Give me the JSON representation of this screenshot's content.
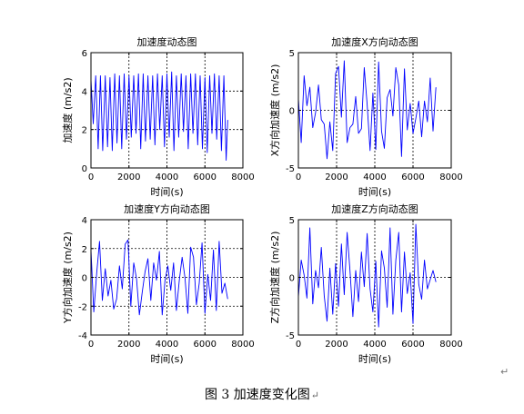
{
  "figure_caption": "图 3  加速度变化图",
  "caption_mark": "↵",
  "trailing_mark": "↵",
  "chart_data": [
    {
      "type": "line",
      "title": "加速度动态图",
      "xlabel": "时间(s)",
      "ylabel": "加速度 (m/s2)",
      "xlim": [
        0,
        8000
      ],
      "ylim": [
        0,
        6
      ],
      "xticks": [
        0,
        2000,
        4000,
        6000,
        8000
      ],
      "yticks": [
        0,
        2,
        4,
        6
      ],
      "grid_x": [
        2000,
        4000,
        6000
      ],
      "grid_y": [
        2,
        4
      ],
      "series": [
        {
          "color": "#0000ff",
          "x": [
            0,
            120,
            250,
            380,
            500,
            620,
            750,
            870,
            1000,
            1120,
            1250,
            1370,
            1500,
            1620,
            1750,
            1870,
            2000,
            2120,
            2250,
            2370,
            2500,
            2620,
            2750,
            2870,
            3000,
            3120,
            3250,
            3370,
            3500,
            3620,
            3750,
            3870,
            4000,
            4120,
            4250,
            4370,
            4500,
            4620,
            4750,
            4870,
            5000,
            5120,
            5250,
            5370,
            5500,
            5620,
            5750,
            5870,
            6000,
            6120,
            6250,
            6370,
            6500,
            6620,
            6750,
            6870,
            7000,
            7120,
            7200
          ],
          "y": [
            4.6,
            2.3,
            4.8,
            1.0,
            4.8,
            0.9,
            4.8,
            1.1,
            4.7,
            0.9,
            4.9,
            1.3,
            4.8,
            1.0,
            4.9,
            1.5,
            4.8,
            1.6,
            4.8,
            1.8,
            4.9,
            1.0,
            4.9,
            1.4,
            4.8,
            1.5,
            4.8,
            1.2,
            4.9,
            2.0,
            4.8,
            1.1,
            4.9,
            1.6,
            5.0,
            0.9,
            4.8,
            1.6,
            4.9,
            1.9,
            4.8,
            1.0,
            4.9,
            1.8,
            4.9,
            1.2,
            4.8,
            1.0,
            4.7,
            0.8,
            4.8,
            1.8,
            4.9,
            1.5,
            4.8,
            0.9,
            4.8,
            0.4,
            2.5
          ]
        }
      ]
    },
    {
      "type": "line",
      "title": "加速度X方向动态图",
      "xlabel": "时间(s)",
      "ylabel": "X方向加速度 (m/s2)",
      "xlim": [
        0,
        8000
      ],
      "ylim": [
        -5,
        5
      ],
      "xticks": [
        0,
        2000,
        4000,
        6000,
        8000
      ],
      "yticks": [
        -5,
        0,
        5
      ],
      "grid_x": [
        2000,
        4000,
        6000
      ],
      "grid_y": [
        0
      ],
      "series": [
        {
          "color": "#0000ff",
          "x": [
            0,
            150,
            300,
            450,
            600,
            750,
            900,
            1050,
            1200,
            1350,
            1500,
            1650,
            1800,
            1950,
            2100,
            2250,
            2400,
            2550,
            2700,
            2850,
            3000,
            3150,
            3300,
            3450,
            3600,
            3750,
            3900,
            4050,
            4200,
            4350,
            4500,
            4650,
            4800,
            4950,
            5100,
            5250,
            5400,
            5550,
            5700,
            5850,
            6000,
            6150,
            6300,
            6450,
            6600,
            6750,
            6900,
            7050,
            7200
          ],
          "y": [
            1.0,
            -2.8,
            3.0,
            0.4,
            2.0,
            -1.5,
            -0.2,
            2.2,
            -0.8,
            -1.2,
            -4.2,
            -1.0,
            -3.5,
            3.2,
            3.8,
            -0.6,
            4.3,
            -2.8,
            -1.5,
            -1.2,
            1.2,
            -2.0,
            -1.6,
            3.7,
            0.5,
            -3.5,
            1.5,
            -3.4,
            4.2,
            -1.8,
            -3.3,
            1.1,
            1.8,
            -0.5,
            3.7,
            2.2,
            -4.0,
            3.6,
            -1.7,
            0.6,
            -2.0,
            -0.7,
            0.8,
            -2.3,
            0.8,
            -1.0,
            2.8,
            -1.8,
            2.0
          ]
        }
      ]
    },
    {
      "type": "line",
      "title": "加速度Y方向动态图",
      "xlabel": "时间(s)",
      "ylabel": "Y方向加速度 (m/s2)",
      "xlim": [
        0,
        8000
      ],
      "ylim": [
        -4,
        4
      ],
      "xticks": [
        0,
        2000,
        4000,
        6000,
        8000
      ],
      "yticks": [
        -4,
        -2,
        0,
        2,
        4
      ],
      "grid_x": [
        2000,
        4000,
        6000
      ],
      "grid_y": [
        -2,
        0,
        2
      ],
      "series": [
        {
          "color": "#0000ff",
          "x": [
            0,
            150,
            300,
            450,
            600,
            750,
            900,
            1050,
            1200,
            1350,
            1500,
            1650,
            1800,
            1950,
            2100,
            2250,
            2400,
            2550,
            2700,
            2850,
            3000,
            3150,
            3300,
            3450,
            3600,
            3750,
            3900,
            4050,
            4200,
            4350,
            4500,
            4650,
            4800,
            4950,
            5100,
            5250,
            5400,
            5550,
            5700,
            5850,
            6000,
            6150,
            6300,
            6450,
            6600,
            6750,
            6900,
            7050,
            7200
          ],
          "y": [
            1.9,
            -2.4,
            0.3,
            2.5,
            -1.6,
            0.6,
            -1.3,
            -0.2,
            -2.2,
            -1.5,
            0.8,
            -0.8,
            2.3,
            2.6,
            -2.0,
            1.0,
            -0.1,
            -2.6,
            -1.0,
            0.4,
            1.3,
            -1.6,
            1.0,
            -0.2,
            1.8,
            -2.6,
            -0.2,
            0.8,
            -0.9,
            1.0,
            -2.3,
            -0.2,
            1.4,
            0.0,
            -2.5,
            2.1,
            1.4,
            -1.9,
            -0.4,
            2.4,
            -2.5,
            0.2,
            -1.6,
            1.9,
            -2.3,
            2.5,
            -1.1,
            -0.4,
            -1.5
          ]
        }
      ]
    },
    {
      "type": "line",
      "title": "加速度Z方向动态图",
      "xlabel": "时间(s)",
      "ylabel": "Z方向加速度 (m/s2)",
      "xlim": [
        0,
        8000
      ],
      "ylim": [
        -5,
        5
      ],
      "xticks": [
        0,
        2000,
        4000,
        6000,
        8000
      ],
      "yticks": [
        -5,
        0,
        5
      ],
      "grid_x": [
        2000,
        4000,
        6000
      ],
      "grid_y": [
        0
      ],
      "series": [
        {
          "color": "#0000ff",
          "x": [
            0,
            150,
            300,
            450,
            600,
            750,
            900,
            1050,
            1200,
            1350,
            1500,
            1650,
            1800,
            1950,
            2100,
            2250,
            2400,
            2550,
            2700,
            2850,
            3000,
            3150,
            3300,
            3450,
            3600,
            3750,
            3900,
            4050,
            4200,
            4350,
            4500,
            4650,
            4800,
            4950,
            5100,
            5250,
            5400,
            5550,
            5700,
            5850,
            6000,
            6150,
            6300,
            6450,
            6600,
            6750,
            6900,
            7050,
            7200
          ],
          "y": [
            -1.7,
            1.5,
            0.2,
            -1.8,
            4.3,
            -2.3,
            0.6,
            -0.9,
            2.6,
            -1.6,
            -3.8,
            0.8,
            -3.2,
            1.2,
            -2.5,
            2.9,
            -1.5,
            3.9,
            0.6,
            -3.4,
            0.6,
            -2.1,
            2.2,
            -0.8,
            3.8,
            -1.0,
            -3.0,
            1.4,
            -4.3,
            2.3,
            0.8,
            -2.6,
            4.3,
            -3.2,
            1.5,
            3.9,
            -3.0,
            2.2,
            -1.4,
            0.4,
            -4.0,
            4.6,
            -0.6,
            -1.9,
            1.5,
            -1.0,
            -0.2,
            0.6,
            -0.4
          ]
        }
      ]
    }
  ]
}
